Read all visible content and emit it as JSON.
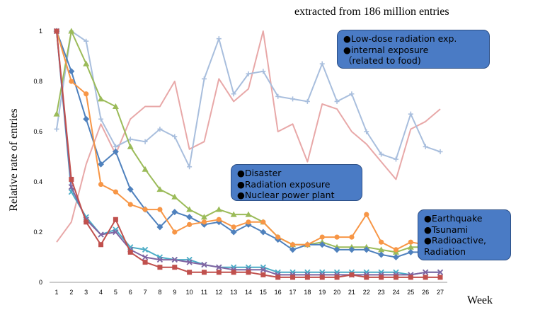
{
  "header": {
    "note": "extracted from 186 million entries"
  },
  "callouts": {
    "radiation": [
      "Low-dose radiation exp.",
      "internal exposure",
      "（related to food)"
    ],
    "disaster": [
      "Disaster",
      "Radiation exposure",
      "Nuclear power plant"
    ],
    "earthquake": [
      "Earthquake",
      "Tsunami",
      "Radioactive,",
      "Radiation"
    ]
  },
  "chart_data": {
    "type": "line",
    "xlabel": "Week",
    "ylabel": "Relative rate of entries",
    "x": [
      1,
      2,
      3,
      4,
      5,
      6,
      7,
      8,
      9,
      10,
      11,
      12,
      13,
      14,
      15,
      16,
      17,
      18,
      19,
      20,
      21,
      22,
      23,
      24,
      25,
      26,
      27
    ],
    "ylim": [
      0,
      1
    ],
    "yticks": [
      0,
      0.2,
      0.4,
      0.6,
      0.8,
      1
    ],
    "yticklabels": [
      "0",
      "0.2",
      "0.4",
      "0.6",
      "0.8",
      "1"
    ],
    "grid": false,
    "series": [
      {
        "color": "#e8a8a8",
        "marker": "none",
        "values": [
          0.16,
          0.24,
          0.47,
          0.63,
          0.51,
          0.65,
          0.7,
          0.7,
          0.8,
          0.53,
          0.56,
          0.81,
          0.72,
          0.77,
          1.0,
          0.6,
          0.63,
          0.48,
          0.71,
          0.69,
          0.6,
          0.55,
          0.48,
          0.41,
          0.61,
          0.64,
          0.69
        ]
      },
      {
        "color": "#a8bedd",
        "marker": "plus",
        "values": [
          0.61,
          1.0,
          0.96,
          0.65,
          0.54,
          0.57,
          0.56,
          0.61,
          0.58,
          0.46,
          0.81,
          0.97,
          0.75,
          0.83,
          0.84,
          0.74,
          0.73,
          0.72,
          0.87,
          0.72,
          0.75,
          0.6,
          0.51,
          0.49,
          0.67,
          0.54,
          0.52
        ]
      },
      {
        "color": "#9bbb59",
        "marker": "triangle",
        "values": [
          0.67,
          1.0,
          0.87,
          0.73,
          0.7,
          0.54,
          0.45,
          0.37,
          0.34,
          0.29,
          0.26,
          0.29,
          0.27,
          0.27,
          0.24,
          0.18,
          0.15,
          0.15,
          0.16,
          0.14,
          0.14,
          0.14,
          0.13,
          0.12,
          0.14,
          0.14,
          0.14
        ]
      },
      {
        "color": "#4f81bd",
        "marker": "diamond",
        "values": [
          1.0,
          0.84,
          0.65,
          0.47,
          0.52,
          0.37,
          0.29,
          0.22,
          0.28,
          0.26,
          0.23,
          0.24,
          0.2,
          0.23,
          0.2,
          0.17,
          0.13,
          0.15,
          0.15,
          0.13,
          0.13,
          0.13,
          0.11,
          0.1,
          0.12,
          0.12,
          0.11
        ]
      },
      {
        "color": "#f79646",
        "marker": "circle",
        "values": [
          1.0,
          0.8,
          0.75,
          0.39,
          0.36,
          0.31,
          0.29,
          0.29,
          0.2,
          0.23,
          0.24,
          0.25,
          0.22,
          0.24,
          0.24,
          0.18,
          0.15,
          0.15,
          0.18,
          0.18,
          0.18,
          0.27,
          0.16,
          0.13,
          0.16,
          0.15,
          0.15
        ]
      },
      {
        "color": "#4bacc6",
        "marker": "x",
        "values": [
          1.0,
          0.36,
          0.26,
          0.19,
          0.21,
          0.14,
          0.13,
          0.1,
          0.09,
          0.09,
          0.07,
          0.06,
          0.06,
          0.06,
          0.06,
          0.04,
          0.04,
          0.04,
          0.04,
          0.04,
          0.04,
          0.04,
          0.04,
          0.04,
          0.03,
          0.04,
          0.04
        ]
      },
      {
        "color": "#8064a2",
        "marker": "x",
        "values": [
          1.0,
          0.38,
          0.25,
          0.19,
          0.2,
          0.13,
          0.1,
          0.09,
          0.09,
          0.08,
          0.07,
          0.06,
          0.05,
          0.05,
          0.05,
          0.03,
          0.03,
          0.03,
          0.03,
          0.03,
          0.03,
          0.03,
          0.03,
          0.03,
          0.03,
          0.04,
          0.04
        ]
      },
      {
        "color": "#c0504d",
        "marker": "square",
        "values": [
          1.0,
          0.41,
          0.24,
          0.15,
          0.25,
          0.12,
          0.08,
          0.06,
          0.06,
          0.04,
          0.04,
          0.04,
          0.04,
          0.04,
          0.03,
          0.02,
          0.02,
          0.02,
          0.02,
          0.02,
          0.03,
          0.02,
          0.02,
          0.02,
          0.02,
          0.02,
          0.02
        ]
      }
    ]
  }
}
